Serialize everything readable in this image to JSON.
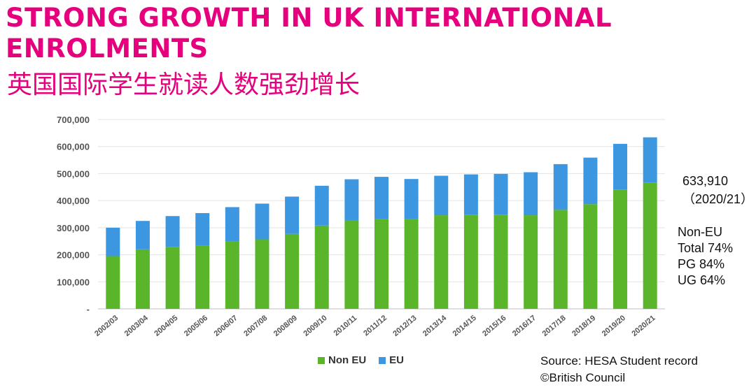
{
  "title_en": "STRONG GROWTH IN UK INTERNATIONAL ENROLMENTS",
  "title_zh": "英国国际学生就读人数强劲增长",
  "colors": {
    "title": "#e6007e",
    "non_eu": "#5ab52b",
    "eu": "#3d97e0"
  },
  "annotation": {
    "total_value": "633,910",
    "total_year": "（2020/21）",
    "stats": [
      "Non-EU",
      "Total 74%",
      "PG 84%",
      "UG 64%"
    ]
  },
  "source": "Source: HESA Student record",
  "copyright": "©British Council",
  "chart_data": {
    "type": "bar",
    "stacked": true,
    "title": "",
    "xlabel": "",
    "ylabel": "",
    "ylim": [
      0,
      700000
    ],
    "yticks": [
      0,
      100000,
      200000,
      300000,
      400000,
      500000,
      600000,
      700000
    ],
    "ytick_labels": [
      "-",
      "100,000",
      "200,000",
      "300,000",
      "400,000",
      "500,000",
      "600,000",
      "700,000"
    ],
    "grid": true,
    "legend_position": "bottom",
    "categories": [
      "2002/03",
      "2003/04",
      "2004/05",
      "2005/06",
      "2006/07",
      "2007/08",
      "2008/09",
      "2009/10",
      "2010/11",
      "2011/12",
      "2012/13",
      "2013/14",
      "2014/15",
      "2015/16",
      "2016/17",
      "2017/18",
      "2018/19",
      "2019/20",
      "2020/21"
    ],
    "series": [
      {
        "name": "Non EU",
        "values": [
          195000,
          220000,
          228000,
          234000,
          249000,
          257000,
          277000,
          308000,
          328000,
          333000,
          331000,
          346000,
          348000,
          348000,
          346000,
          366000,
          387000,
          441000,
          467000
        ]
      },
      {
        "name": "EU",
        "values": [
          105000,
          105000,
          115000,
          120000,
          127000,
          132000,
          138000,
          147000,
          151000,
          155000,
          149000,
          146000,
          149000,
          151000,
          159000,
          169000,
          172000,
          169000,
          167000
        ]
      }
    ]
  }
}
